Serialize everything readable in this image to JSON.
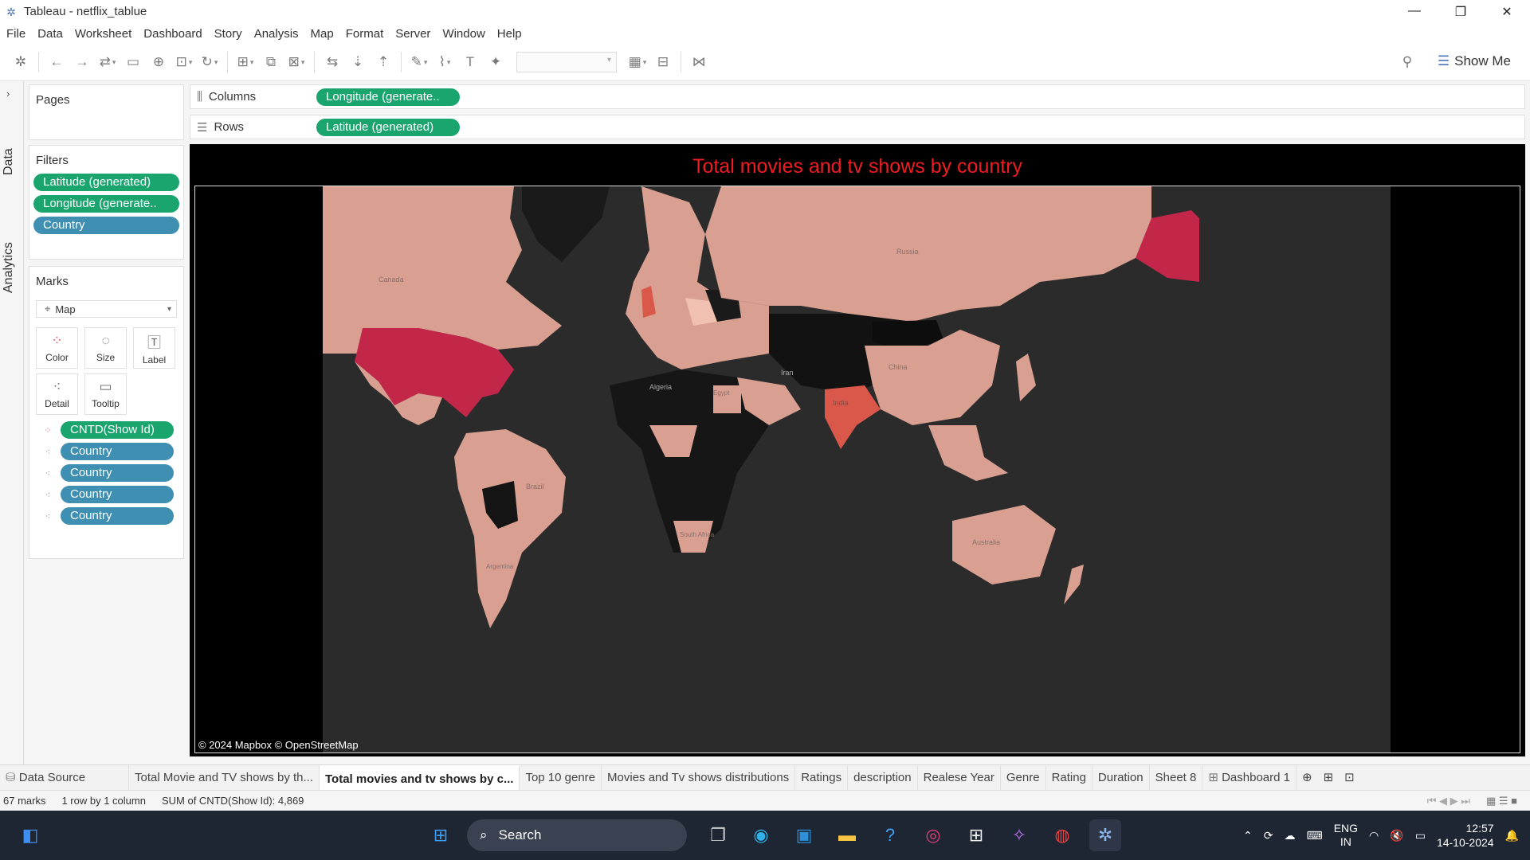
{
  "window": {
    "title": "Tableau - netflix_tablue",
    "controls": [
      "—",
      "❐",
      "✕"
    ]
  },
  "menu": [
    "File",
    "Data",
    "Worksheet",
    "Dashboard",
    "Story",
    "Analysis",
    "Map",
    "Format",
    "Server",
    "Window",
    "Help"
  ],
  "toolbar": {
    "show_me_label": "Show Me"
  },
  "side_tabs": {
    "data": "Data",
    "analytics": "Analytics"
  },
  "pages": {
    "title": "Pages"
  },
  "filters": {
    "title": "Filters",
    "items": [
      "Latitude (generated)",
      "Longitude (generate..",
      "Country"
    ]
  },
  "marks": {
    "title": "Marks",
    "type": "Map",
    "buttons": [
      "Color",
      "Size",
      "Label",
      "Detail",
      "Tooltip"
    ],
    "pills": [
      "CNTD(Show Id)",
      "Country",
      "Country",
      "Country",
      "Country"
    ]
  },
  "shelves": {
    "columns_label": "Columns",
    "columns_pill": "Longitude (generate..",
    "rows_label": "Rows",
    "rows_pill": "Latitude (generated)"
  },
  "viz": {
    "title": "Total movies and tv shows by country",
    "attribution": "© 2024 Mapbox © OpenStreetMap",
    "labels": [
      "Canada",
      "Russia",
      "Algeria",
      "Iran",
      "China",
      "India",
      "Brazil",
      "Australia",
      "Egypt",
      "Argentina",
      "South Africa"
    ],
    "colors": {
      "background": "#2b2b2b",
      "high": "#c2274a",
      "mid": "#d9584a",
      "low": "#d9a092",
      "none": "#111111",
      "title": "#ee1d23"
    }
  },
  "sheet_tabs": [
    "Data Source",
    "Total Movie and TV shows by th...",
    "Total movies and tv shows by c...",
    "Top 10 genre",
    "Movies and Tv shows distributions",
    "Ratings",
    "description",
    "Realese Year",
    "Genre",
    "Rating",
    "Duration",
    "Sheet 8",
    "Dashboard 1"
  ],
  "active_tab": 2,
  "status": {
    "marks": "67 marks",
    "dims": "1 row by 1 column",
    "sum": "SUM of CNTD(Show Id): 4,869"
  },
  "taskbar": {
    "search": "Search",
    "lang1": "ENG",
    "lang2": "IN",
    "time": "12:57",
    "date": "14-10-2024"
  }
}
